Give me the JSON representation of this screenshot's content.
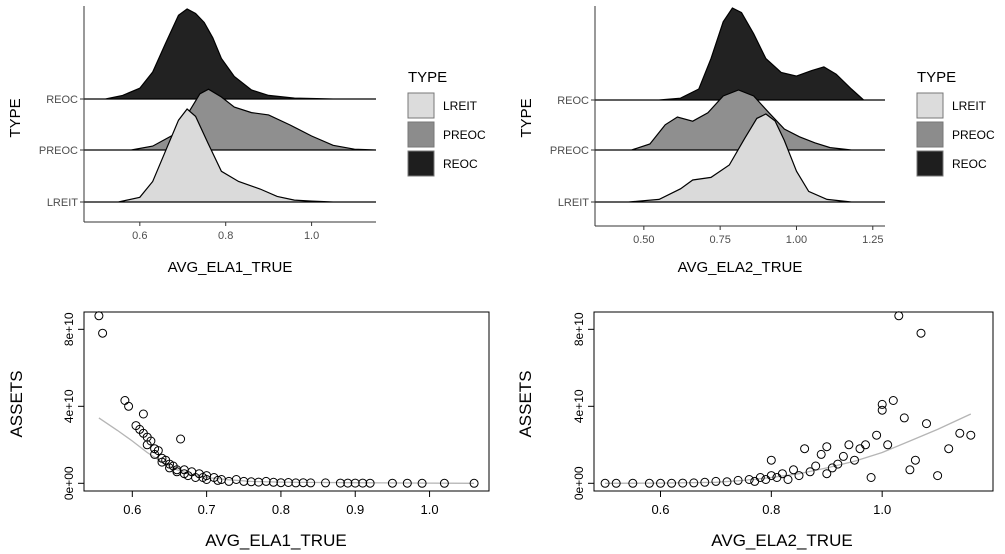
{
  "chart_data": [
    {
      "type": "area",
      "subtype": "ridgeline-density",
      "xlabel": "AVG_ELA1_TRUE",
      "ylabel": "TYPE",
      "categories": [
        "LREIT",
        "PREOC",
        "REOC"
      ],
      "xlim": [
        0.47,
        1.15
      ],
      "xticks": [
        "0.6",
        "0.8",
        "1.0"
      ],
      "xtick_values": [
        0.6,
        0.8,
        1.0
      ],
      "legend": {
        "title": "TYPE",
        "placement": "right",
        "entries": [
          "LREIT",
          "PREOC",
          "REOC"
        ]
      },
      "grid": false,
      "series": [
        {
          "name": "LREIT",
          "x": [
            0.47,
            0.55,
            0.6,
            0.63,
            0.66,
            0.69,
            0.71,
            0.73,
            0.76,
            0.79,
            0.83,
            0.88,
            0.92,
            0.96,
            1.0,
            1.05,
            1.15
          ],
          "density": [
            0.0,
            0.0,
            0.05,
            0.22,
            0.55,
            0.88,
            1.0,
            0.92,
            0.62,
            0.33,
            0.22,
            0.14,
            0.06,
            0.02,
            0.01,
            0.0,
            0.0
          ]
        },
        {
          "name": "PREOC",
          "x": [
            0.47,
            0.58,
            0.63,
            0.68,
            0.71,
            0.74,
            0.76,
            0.79,
            0.82,
            0.86,
            0.9,
            0.95,
            1.0,
            1.05,
            1.1,
            1.15
          ],
          "density": [
            0.0,
            0.0,
            0.05,
            0.2,
            0.45,
            0.72,
            0.78,
            0.68,
            0.55,
            0.48,
            0.45,
            0.32,
            0.18,
            0.06,
            0.01,
            0.0
          ]
        },
        {
          "name": "REOC",
          "x": [
            0.47,
            0.52,
            0.56,
            0.6,
            0.63,
            0.66,
            0.69,
            0.71,
            0.73,
            0.75,
            0.77,
            0.79,
            0.82,
            0.86,
            0.9,
            0.96,
            1.05,
            1.15
          ],
          "density": [
            0.0,
            0.0,
            0.04,
            0.12,
            0.3,
            0.62,
            0.93,
            1.0,
            0.95,
            0.85,
            0.68,
            0.45,
            0.25,
            0.1,
            0.04,
            0.01,
            0.0,
            0.0
          ]
        }
      ]
    },
    {
      "type": "area",
      "subtype": "ridgeline-density",
      "xlabel": "AVG_ELA2_TRUE",
      "ylabel": "TYPE",
      "categories": [
        "LREIT",
        "PREOC",
        "REOC"
      ],
      "xlim": [
        0.34,
        1.29
      ],
      "xticks": [
        "0.50",
        "0.75",
        "1.00",
        "1.25"
      ],
      "xtick_values": [
        0.5,
        0.75,
        1.0,
        1.25
      ],
      "legend": {
        "title": "TYPE",
        "placement": "right",
        "entries": [
          "LREIT",
          "PREOC",
          "REOC"
        ]
      },
      "grid": false,
      "series": [
        {
          "name": "LREIT",
          "x": [
            0.34,
            0.45,
            0.55,
            0.62,
            0.66,
            0.72,
            0.78,
            0.83,
            0.87,
            0.9,
            0.93,
            0.96,
            1.0,
            1.04,
            1.1,
            1.18,
            1.29
          ],
          "density": [
            0.0,
            0.0,
            0.03,
            0.15,
            0.25,
            0.28,
            0.42,
            0.72,
            0.95,
            1.0,
            0.92,
            0.7,
            0.35,
            0.12,
            0.03,
            0.0,
            0.0
          ]
        },
        {
          "name": "PREOC",
          "x": [
            0.34,
            0.46,
            0.52,
            0.57,
            0.61,
            0.66,
            0.71,
            0.76,
            0.81,
            0.86,
            0.91,
            0.96,
            1.01,
            1.06,
            1.11,
            1.18,
            1.29
          ],
          "density": [
            0.0,
            0.0,
            0.1,
            0.42,
            0.55,
            0.48,
            0.62,
            0.9,
            1.0,
            0.9,
            0.62,
            0.35,
            0.22,
            0.12,
            0.04,
            0.0,
            0.0
          ]
        },
        {
          "name": "REOC",
          "x": [
            0.34,
            0.55,
            0.62,
            0.68,
            0.72,
            0.76,
            0.79,
            0.82,
            0.86,
            0.9,
            0.95,
            1.0,
            1.05,
            1.09,
            1.13,
            1.18,
            1.22,
            1.29
          ],
          "density": [
            0.0,
            0.0,
            0.02,
            0.12,
            0.45,
            0.85,
            1.0,
            0.95,
            0.72,
            0.45,
            0.3,
            0.26,
            0.32,
            0.36,
            0.28,
            0.12,
            0.0,
            0.0
          ]
        }
      ]
    },
    {
      "type": "scatter",
      "xlabel": "AVG_ELA1_TRUE",
      "ylabel": "ASSETS",
      "xlim": [
        0.535,
        1.08
      ],
      "ylim": [
        -4000000000.0,
        89000000000.0
      ],
      "xticks": [
        "0.6",
        "0.7",
        "0.8",
        "0.9",
        "1.0"
      ],
      "xtick_values": [
        0.6,
        0.7,
        0.8,
        0.9,
        1.0
      ],
      "yticks": [
        "0e+00",
        "4e+10",
        "8e+10"
      ],
      "ytick_values": [
        0,
        40000000000.0,
        80000000000.0
      ],
      "grid": false,
      "trend": {
        "x": [
          0.555,
          0.58,
          0.6,
          0.62,
          0.64,
          0.66,
          0.68,
          0.7,
          0.73,
          0.76,
          0.8,
          0.85,
          0.9,
          1.0,
          1.06
        ],
        "y": [
          34000000000.0,
          27500000000.0,
          22000000000.0,
          16000000000.0,
          11000000000.0,
          7000000000.0,
          4500000000.0,
          3000000000.0,
          1800000000.0,
          1000000000.0,
          600000000.0,
          400000000.0,
          300000000.0,
          100000000.0,
          0
        ]
      },
      "points": {
        "x": [
          0.555,
          0.56,
          0.59,
          0.595,
          0.605,
          0.61,
          0.615,
          0.615,
          0.62,
          0.62,
          0.625,
          0.63,
          0.63,
          0.635,
          0.64,
          0.64,
          0.645,
          0.65,
          0.65,
          0.655,
          0.66,
          0.66,
          0.665,
          0.67,
          0.67,
          0.675,
          0.68,
          0.685,
          0.69,
          0.695,
          0.7,
          0.7,
          0.71,
          0.715,
          0.72,
          0.73,
          0.74,
          0.75,
          0.76,
          0.77,
          0.78,
          0.79,
          0.8,
          0.81,
          0.82,
          0.83,
          0.84,
          0.86,
          0.88,
          0.89,
          0.9,
          0.91,
          0.92,
          0.95,
          0.97,
          0.99,
          1.02,
          1.06
        ],
        "y": [
          87000000000.0,
          78000000000.0,
          43000000000.0,
          40000000000.0,
          30000000000.0,
          28000000000.0,
          36000000000.0,
          26000000000.0,
          24000000000.0,
          20000000000.0,
          22000000000.0,
          18000000000.0,
          15000000000.0,
          17000000000.0,
          13000000000.0,
          11000000000.0,
          12000000000.0,
          10000000000.0,
          8000000000.0,
          9000000000.0,
          7000000000.0,
          6000000000.0,
          23000000000.0,
          5000000000.0,
          7000000000.0,
          4000000000.0,
          6000000000.0,
          3000000000.0,
          5000000000.0,
          3000000000.0,
          2000000000.0,
          4000000000.0,
          3000000000.0,
          1500000000.0,
          2000000000.0,
          1000000000.0,
          2000000000.0,
          1000000000.0,
          800000000.0,
          600000000.0,
          1000000000.0,
          500000000.0,
          300000000.0,
          400000000.0,
          200000000.0,
          300000000.0,
          200000000.0,
          200000000.0,
          100000000.0,
          100000000.0,
          100000000.0,
          100000000.0,
          50000000.0,
          50000000.0,
          50000000.0,
          10000000.0,
          10000000.0,
          10000000.0
        ]
      }
    },
    {
      "type": "scatter",
      "xlabel": "AVG_ELA2_TRUE",
      "ylabel": "ASSETS",
      "xlim": [
        0.48,
        1.2
      ],
      "ylim": [
        -4000000000.0,
        89000000000.0
      ],
      "xticks": [
        "0.6",
        "0.8",
        "1.0"
      ],
      "xtick_values": [
        0.6,
        0.8,
        1.0
      ],
      "yticks": [
        "0e+00",
        "4e+10",
        "8e+10"
      ],
      "ytick_values": [
        0,
        40000000000.0,
        80000000000.0
      ],
      "grid": false,
      "trend": {
        "x": [
          0.5,
          0.6,
          0.7,
          0.75,
          0.8,
          0.85,
          0.9,
          0.95,
          1.0,
          1.05,
          1.1,
          1.16
        ],
        "y": [
          0,
          100000000.0,
          500000000.0,
          1500000000.0,
          3000000000.0,
          5000000000.0,
          8000000000.0,
          11500000000.0,
          16000000000.0,
          22000000000.0,
          28000000000.0,
          36000000000.0
        ]
      },
      "points": {
        "x": [
          0.5,
          0.52,
          0.55,
          0.58,
          0.6,
          0.62,
          0.64,
          0.66,
          0.68,
          0.7,
          0.72,
          0.74,
          0.76,
          0.77,
          0.78,
          0.79,
          0.8,
          0.8,
          0.81,
          0.82,
          0.83,
          0.84,
          0.85,
          0.86,
          0.87,
          0.88,
          0.89,
          0.9,
          0.9,
          0.91,
          0.92,
          0.93,
          0.94,
          0.95,
          0.96,
          0.97,
          0.98,
          0.99,
          1.0,
          1.0,
          1.01,
          1.02,
          1.03,
          1.04,
          1.05,
          1.06,
          1.07,
          1.08,
          1.1,
          1.12,
          1.14,
          1.16
        ],
        "y": [
          0,
          0,
          0,
          0,
          0,
          0,
          100000000.0,
          200000000.0,
          500000000.0,
          1000000000.0,
          800000000.0,
          1500000000.0,
          2000000000.0,
          1000000000.0,
          3000000000.0,
          2000000000.0,
          4000000000.0,
          12000000000.0,
          3000000000.0,
          5000000000.0,
          2000000000.0,
          7000000000.0,
          4000000000.0,
          18000000000.0,
          6000000000.0,
          9000000000.0,
          15000000000.0,
          5000000000.0,
          19000000000.0,
          8000000000.0,
          10000000000.0,
          14000000000.0,
          20000000000.0,
          12000000000.0,
          18000000000.0,
          20000000000.0,
          3000000000.0,
          25000000000.0,
          41000000000.0,
          38000000000.0,
          20000000000.0,
          43000000000.0,
          87000000000.0,
          34000000000.0,
          7000000000.0,
          12000000000.0,
          78000000000.0,
          31000000000.0,
          4000000000.0,
          18000000000.0,
          26000000000.0,
          25000000000.0
        ]
      }
    }
  ]
}
